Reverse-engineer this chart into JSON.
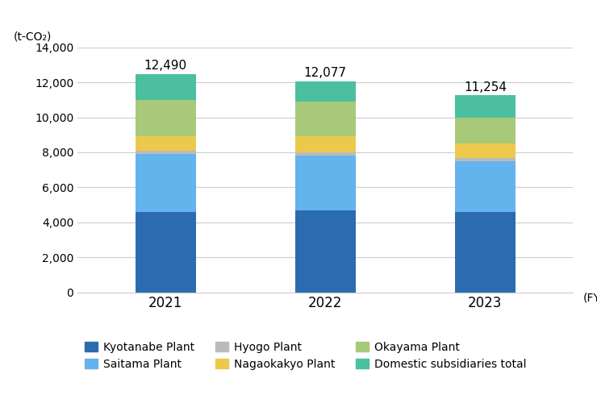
{
  "years": [
    "2021",
    "2022",
    "2023"
  ],
  "segments": {
    "Kyotanabe Plant": [
      4600,
      4700,
      4600
    ],
    "Saitama Plant": [
      3300,
      3100,
      2900
    ],
    "Hyogo Plant": [
      200,
      200,
      200
    ],
    "Nagaokakyo Plant": [
      800,
      900,
      800
    ],
    "Okayama Plant": [
      2100,
      2000,
      1500
    ],
    "Domestic subsidiaries total": [
      1490,
      1177,
      1254
    ]
  },
  "totals": [
    12490,
    12077,
    11254
  ],
  "colors": {
    "Kyotanabe Plant": "#2B6CB0",
    "Saitama Plant": "#63B3ED",
    "Hyogo Plant": "#BBBBBB",
    "Nagaokakyo Plant": "#ECC94B",
    "Okayama Plant": "#A8C97A",
    "Domestic subsidiaries total": "#4BBFA0"
  },
  "legend_order": [
    "Kyotanabe Plant",
    "Saitama Plant",
    "Hyogo Plant",
    "Nagaokakyo Plant",
    "Okayama Plant",
    "Domestic subsidiaries total"
  ],
  "ylabel": "(t-CO₂)",
  "xlabel_note": "(FY)",
  "ylim": [
    0,
    14000
  ],
  "yticks": [
    0,
    2000,
    4000,
    6000,
    8000,
    10000,
    12000,
    14000
  ],
  "background_color": "#ffffff",
  "grid_color": "#cccccc",
  "bar_width": 0.38,
  "total_fontsize": 11,
  "legend_fontsize": 10
}
